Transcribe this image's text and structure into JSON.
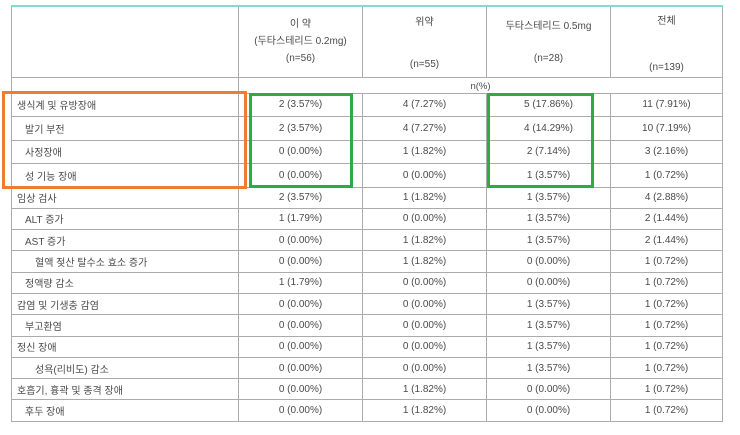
{
  "colors": {
    "table_top_border": "#7edcd5",
    "grid_border": "#ababab",
    "text": "#4a4a4a",
    "highlight_orange": "#ed7d31",
    "highlight_green": "#2eac44"
  },
  "table": {
    "header": {
      "col_label": "",
      "col1_lines": [
        "이 약",
        "(두타스테리드 0.2mg)",
        "(n=56)"
      ],
      "col2_lines": [
        "위약",
        "(n=55)"
      ],
      "col3_lines": [
        "두타스테리드 0.5mg",
        "(n=28)"
      ],
      "col4_lines": [
        "전체",
        "(n=139)"
      ]
    },
    "subheader": "n(%)",
    "rows": [
      {
        "label": "생식계 및 유방장애",
        "indent": 0,
        "values": [
          "2 (3.57%)",
          "4 (7.27%)",
          "5 (17.86%)",
          "11 (7.91%)"
        ]
      },
      {
        "label": "발기 부전",
        "indent": 1,
        "values": [
          "2 (3.57%)",
          "4 (7.27%)",
          "4 (14.29%)",
          "10 (7.19%)"
        ]
      },
      {
        "label": "사정장애",
        "indent": 1,
        "values": [
          "0 (0.00%)",
          "1 (1.82%)",
          "2 (7.14%)",
          "3 (2.16%)"
        ]
      },
      {
        "label": "성 기능 장애",
        "indent": 1,
        "values": [
          "0 (0.00%)",
          "0 (0.00%)",
          "1 (3.57%)",
          "1 (0.72%)"
        ]
      },
      {
        "label": "임상 검사",
        "indent": 0,
        "values": [
          "2 (3.57%)",
          "1 (1.82%)",
          "1 (3.57%)",
          "4 (2.88%)"
        ]
      },
      {
        "label": "ALT 증가",
        "indent": 1,
        "values": [
          "1 (1.79%)",
          "0 (0.00%)",
          "1 (3.57%)",
          "2 (1.44%)"
        ]
      },
      {
        "label": "AST 증가",
        "indent": 1,
        "values": [
          "0 (0.00%)",
          "1 (1.82%)",
          "1 (3.57%)",
          "2 (1.44%)"
        ]
      },
      {
        "label": "혈액 젖산 탈수소 효소 증가",
        "indent": 2,
        "values": [
          "0 (0.00%)",
          "1 (1.82%)",
          "0 (0.00%)",
          "1 (0.72%)"
        ]
      },
      {
        "label": "정액량 감소",
        "indent": 1,
        "values": [
          "1 (1.79%)",
          "0 (0.00%)",
          "0 (0.00%)",
          "1 (0.72%)"
        ]
      },
      {
        "label": "감염 및 기생충 감염",
        "indent": 0,
        "values": [
          "0 (0.00%)",
          "0 (0.00%)",
          "1 (3.57%)",
          "1 (0.72%)"
        ]
      },
      {
        "label": "부고환염",
        "indent": 1,
        "values": [
          "0 (0.00%)",
          "0 (0.00%)",
          "1 (3.57%)",
          "1 (0.72%)"
        ]
      },
      {
        "label": "정신 장애",
        "indent": 0,
        "values": [
          "0 (0.00%)",
          "0 (0.00%)",
          "1 (3.57%)",
          "1 (0.72%)"
        ]
      },
      {
        "label": "성욕(리비도) 감소",
        "indent": 2,
        "values": [
          "0 (0.00%)",
          "0 (0.00%)",
          "1 (3.57%)",
          "1 (0.72%)"
        ]
      },
      {
        "label": "호흡기, 흉곽 및 종격 장애",
        "indent": 0,
        "values": [
          "0 (0.00%)",
          "1 (1.82%)",
          "0 (0.00%)",
          "1 (0.72%)"
        ]
      },
      {
        "label": "후두 장애",
        "indent": 1,
        "values": [
          "0 (0.00%)",
          "1 (1.82%)",
          "0 (0.00%)",
          "1 (0.72%)"
        ]
      }
    ]
  }
}
